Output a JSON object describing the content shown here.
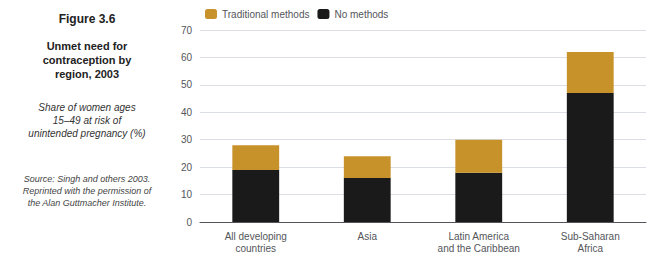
{
  "chart_data": {
    "type": "bar",
    "title": "Unmet need for\ncontraception by\nregion, 2003",
    "subtitle": "Share of women ages\n15–49 at risk of\nunintended pregnancy (%)",
    "annotations": [
      "Figure 3.6",
      "Source: Singh and others 2003.\nReprinted with the permission of\nthe Alan Guttmacher Institute."
    ],
    "categories": [
      "All developing\ncountries",
      "Asia",
      "Latin America\nand the Caribbean",
      "Sub-Saharan\nAfrica"
    ],
    "series": [
      {
        "name": "No methods",
        "color": "#1a1a1a",
        "values": [
          19,
          16,
          18,
          47
        ]
      },
      {
        "name": "Traditional methods",
        "color": "#c8922a",
        "values": [
          9,
          8,
          12,
          15
        ]
      }
    ],
    "stacked": true,
    "ylim": [
      0,
      70
    ],
    "yticks": [
      0,
      10,
      20,
      30,
      40,
      50,
      60,
      70
    ],
    "grid": true,
    "legend": "upper left"
  }
}
